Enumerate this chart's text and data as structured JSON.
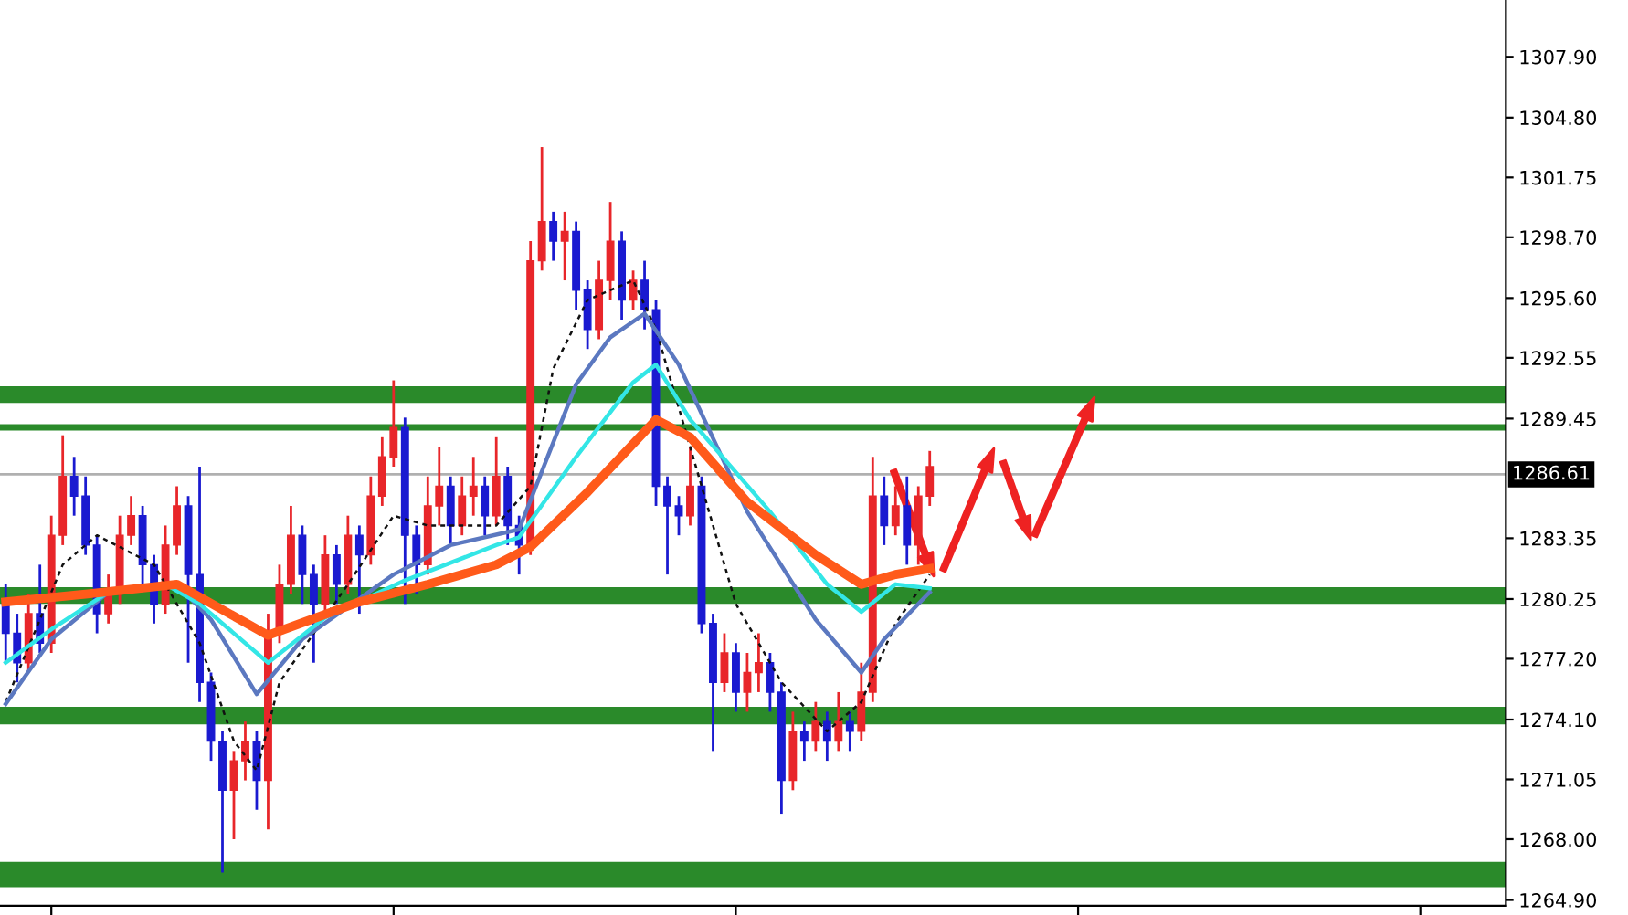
{
  "chart_data": {
    "type": "candlestick",
    "categories": [
      null,
      null,
      null,
      null,
      null,
      null,
      null,
      null,
      null,
      null,
      null,
      null,
      null,
      null,
      null,
      null,
      null,
      null,
      null,
      null,
      null,
      null,
      null,
      null,
      null,
      null,
      null,
      null,
      null,
      null,
      null,
      null,
      null,
      null,
      null,
      null,
      null,
      null,
      null,
      null,
      null,
      null,
      null,
      null,
      null,
      null,
      null,
      null,
      null,
      null,
      null,
      null,
      null,
      null,
      null,
      null,
      null,
      null,
      null,
      null,
      null,
      null,
      null,
      null,
      null,
      null,
      null,
      null,
      null,
      null,
      null,
      null,
      null,
      null,
      null,
      null,
      null,
      null,
      null,
      null,
      null,
      null,
      null,
      null,
      null,
      null,
      null,
      null,
      null,
      null,
      null,
      null,
      null,
      null,
      null,
      null,
      null,
      null,
      null,
      null,
      null,
      null,
      null,
      null,
      null,
      null,
      null,
      null,
      null,
      null,
      null,
      null,
      null,
      null,
      null,
      null,
      null,
      null,
      null,
      null,
      null,
      null,
      null,
      null,
      null,
      null,
      null,
      null,
      null,
      null,
      null,
      null
    ],
    "ohlc": [
      [
        1280.0,
        1281.0,
        1277.0,
        1278.5
      ],
      [
        1278.5,
        1279.5,
        1276.0,
        1277.0
      ],
      [
        1277.0,
        1280.5,
        1276.5,
        1279.5
      ],
      [
        1279.5,
        1282.0,
        1277.5,
        1278.0
      ],
      [
        1278.0,
        1284.5,
        1277.5,
        1283.5
      ],
      [
        1283.5,
        1288.6,
        1283.0,
        1286.5
      ],
      [
        1286.5,
        1287.5,
        1284.5,
        1285.5
      ],
      [
        1285.5,
        1286.5,
        1282.5,
        1283.0
      ],
      [
        1283.0,
        1283.5,
        1278.5,
        1279.5
      ],
      [
        1279.5,
        1281.5,
        1279.0,
        1280.5
      ],
      [
        1280.5,
        1284.5,
        1280.0,
        1283.5
      ],
      [
        1283.5,
        1285.5,
        1283.0,
        1284.5
      ],
      [
        1284.5,
        1285.0,
        1281.0,
        1282.0
      ],
      [
        1282.0,
        1282.5,
        1279.0,
        1280.0
      ],
      [
        1280.0,
        1284.0,
        1279.5,
        1283.0
      ],
      [
        1283.0,
        1286.0,
        1282.5,
        1285.0
      ],
      [
        1285.0,
        1285.5,
        1277.0,
        1281.5
      ],
      [
        1281.5,
        1287.0,
        1275.0,
        1276.0
      ],
      [
        1276.0,
        1276.5,
        1272.0,
        1273.0
      ],
      [
        1273.0,
        1273.5,
        1266.3,
        1270.5
      ],
      [
        1270.5,
        1272.5,
        1268.0,
        1272.0
      ],
      [
        1272.0,
        1274.0,
        1271.0,
        1273.0
      ],
      [
        1273.0,
        1273.5,
        1269.5,
        1271.0
      ],
      [
        1271.0,
        1279.5,
        1268.5,
        1278.5
      ],
      [
        1278.5,
        1282.0,
        1278.0,
        1281.0
      ],
      [
        1281.0,
        1285.0,
        1280.5,
        1283.5
      ],
      [
        1283.5,
        1284.0,
        1280.0,
        1281.5
      ],
      [
        1281.5,
        1282.0,
        1277.0,
        1280.0
      ],
      [
        1280.0,
        1283.5,
        1279.5,
        1282.5
      ],
      [
        1282.5,
        1283.0,
        1280.0,
        1281.0
      ],
      [
        1281.0,
        1284.5,
        1280.5,
        1283.5
      ],
      [
        1283.5,
        1284.0,
        1279.5,
        1282.5
      ],
      [
        1282.5,
        1286.5,
        1282.0,
        1285.5
      ],
      [
        1285.5,
        1288.5,
        1285.0,
        1287.5
      ],
      [
        1287.5,
        1291.4,
        1287.0,
        1289.0
      ],
      [
        1289.0,
        1289.5,
        1280.0,
        1283.5
      ],
      [
        1283.5,
        1284.0,
        1280.5,
        1282.0
      ],
      [
        1282.0,
        1286.5,
        1281.5,
        1285.0
      ],
      [
        1285.0,
        1288.0,
        1284.0,
        1286.0
      ],
      [
        1286.0,
        1286.5,
        1283.0,
        1284.0
      ],
      [
        1284.0,
        1286.5,
        1283.5,
        1285.5
      ],
      [
        1285.5,
        1287.5,
        1284.5,
        1286.0
      ],
      [
        1286.0,
        1286.5,
        1283.5,
        1284.5
      ],
      [
        1284.5,
        1288.5,
        1284.0,
        1286.5
      ],
      [
        1286.5,
        1287.0,
        1283.0,
        1284.0
      ],
      [
        1284.0,
        1284.5,
        1281.5,
        1283.0
      ],
      [
        1283.0,
        1298.5,
        1282.5,
        1297.5
      ],
      [
        1297.5,
        1303.3,
        1297.0,
        1299.5
      ],
      [
        1299.5,
        1300.0,
        1297.5,
        1298.5
      ],
      [
        1298.5,
        1300.0,
        1296.5,
        1299.0
      ],
      [
        1299.0,
        1299.5,
        1295.0,
        1296.0
      ],
      [
        1296.0,
        1296.5,
        1293.0,
        1294.0
      ],
      [
        1294.0,
        1297.5,
        1293.5,
        1296.5
      ],
      [
        1296.5,
        1300.5,
        1295.5,
        1298.5
      ],
      [
        1298.5,
        1299.0,
        1294.5,
        1295.5
      ],
      [
        1295.5,
        1297.0,
        1295.0,
        1296.5
      ],
      [
        1296.5,
        1297.5,
        1294.0,
        1295.0
      ],
      [
        1295.0,
        1295.5,
        1285.0,
        1286.0
      ],
      [
        1286.0,
        1286.5,
        1281.5,
        1285.0
      ],
      [
        1285.0,
        1285.5,
        1283.5,
        1284.5
      ],
      [
        1284.5,
        1288.0,
        1284.0,
        1286.0
      ],
      [
        1286.0,
        1286.5,
        1278.5,
        1279.0
      ],
      [
        1279.0,
        1279.5,
        1272.5,
        1276.0
      ],
      [
        1276.0,
        1278.5,
        1275.5,
        1277.5
      ],
      [
        1277.5,
        1278.0,
        1274.5,
        1275.5
      ],
      [
        1275.5,
        1277.5,
        1274.5,
        1276.5
      ],
      [
        1276.5,
        1278.5,
        1275.5,
        1277.0
      ],
      [
        1277.0,
        1277.5,
        1274.5,
        1275.5
      ],
      [
        1275.5,
        1276.0,
        1269.3,
        1271.0
      ],
      [
        1271.0,
        1274.5,
        1270.5,
        1273.5
      ],
      [
        1273.5,
        1274.0,
        1272.0,
        1273.0
      ],
      [
        1273.0,
        1275.0,
        1272.5,
        1274.0
      ],
      [
        1274.0,
        1274.5,
        1272.0,
        1273.0
      ],
      [
        1273.0,
        1275.5,
        1272.5,
        1274.0
      ],
      [
        1274.0,
        1274.5,
        1272.5,
        1273.5
      ],
      [
        1273.5,
        1277.0,
        1273.0,
        1275.5
      ],
      [
        1275.5,
        1287.5,
        1275.0,
        1285.5
      ],
      [
        1285.5,
        1286.5,
        1283.0,
        1284.0
      ],
      [
        1284.0,
        1286.0,
        1283.5,
        1285.0
      ],
      [
        1285.0,
        1286.5,
        1282.0,
        1283.0
      ],
      [
        1283.0,
        1286.0,
        1282.0,
        1285.5
      ],
      [
        1285.5,
        1287.8,
        1285.0,
        1287.0
      ],
      null,
      null,
      null,
      null,
      null,
      null,
      null,
      null,
      null,
      null,
      null,
      null,
      null,
      null,
      null,
      null,
      null,
      null,
      null,
      null,
      null,
      null,
      null,
      null,
      null,
      null,
      null,
      null,
      null,
      null,
      null,
      null,
      null,
      null,
      null,
      null,
      null,
      null,
      null,
      null,
      null,
      null,
      null,
      null,
      null,
      null,
      null,
      null,
      null,
      null
    ],
    "series": [
      {
        "type": "line",
        "line_style": "dashed",
        "color": "#111111",
        "values": [
          1275,
          null,
          null,
          null,
          null,
          1282,
          null,
          null,
          1283.5,
          null,
          null,
          null,
          null,
          1282,
          null,
          null,
          null,
          1278,
          null,
          null,
          1273,
          null,
          1271.5,
          null,
          1276,
          null,
          null,
          null,
          null,
          null,
          1281,
          null,
          null,
          null,
          1284.5,
          null,
          null,
          1284,
          null,
          null,
          null,
          null,
          null,
          1284,
          null,
          null,
          1286,
          null,
          1292,
          null,
          null,
          1295.5,
          null,
          null,
          null,
          1296.5,
          null,
          1294,
          null,
          null,
          null,
          1286,
          null,
          null,
          1280,
          null,
          null,
          null,
          1276,
          null,
          null,
          null,
          1273.5,
          null,
          null,
          1275,
          null,
          null,
          1279,
          null,
          null,
          1281.5,
          null,
          null,
          null,
          null,
          null,
          null,
          null,
          null,
          null,
          null,
          null,
          null,
          null,
          null,
          null,
          null,
          null,
          null,
          null,
          null,
          null,
          null,
          null,
          null,
          null,
          null,
          null,
          null,
          null,
          null,
          null,
          null,
          null,
          null,
          null,
          null,
          null,
          null,
          null,
          null,
          null,
          null,
          null,
          null,
          null,
          null,
          null,
          null,
          null,
          null
        ]
      },
      {
        "type": "line",
        "line_style": "solid",
        "color": "#5b78c0",
        "values": [
          1274.9,
          null,
          null,
          null,
          1278.2,
          null,
          null,
          null,
          null,
          1280.6,
          null,
          null,
          null,
          null,
          null,
          1281.0,
          null,
          null,
          1279.2,
          null,
          null,
          null,
          1275.4,
          null,
          null,
          null,
          1278.2,
          null,
          null,
          null,
          null,
          null,
          null,
          null,
          1281.5,
          null,
          null,
          null,
          null,
          1283.0,
          null,
          null,
          null,
          null,
          null,
          1283.8,
          null,
          null,
          null,
          null,
          1291.2,
          null,
          null,
          1293.6,
          null,
          null,
          1294.8,
          null,
          null,
          1292.2,
          null,
          null,
          null,
          null,
          null,
          1284.7,
          null,
          null,
          null,
          null,
          null,
          1279.2,
          null,
          null,
          null,
          1276.5,
          null,
          1278.2,
          null,
          null,
          null,
          1280.6,
          null,
          null,
          null,
          null,
          null,
          null,
          null,
          null,
          null,
          null,
          null,
          null,
          null,
          null,
          null,
          null,
          null,
          null,
          null,
          null,
          null,
          null,
          null,
          null,
          null,
          null,
          null,
          null,
          null,
          null,
          null,
          null,
          null,
          null,
          null,
          null,
          null,
          null,
          null,
          null,
          null,
          null,
          null,
          null,
          null,
          null,
          null,
          null,
          null,
          null
        ]
      },
      {
        "type": "line",
        "line_style": "solid",
        "color": "#33e6e6",
        "values": [
          1277.0,
          null,
          null,
          null,
          1278.7,
          null,
          null,
          null,
          null,
          1280.6,
          null,
          null,
          null,
          null,
          1281.0,
          null,
          null,
          1280.0,
          null,
          null,
          null,
          null,
          null,
          1277.0,
          null,
          null,
          null,
          null,
          1279.3,
          null,
          null,
          null,
          null,
          null,
          null,
          1281.2,
          null,
          null,
          null,
          null,
          null,
          null,
          null,
          1283.0,
          null,
          1283.4,
          null,
          null,
          null,
          null,
          1287.5,
          null,
          null,
          null,
          null,
          1291.3,
          null,
          1292.2,
          null,
          null,
          1289.4,
          null,
          null,
          null,
          null,
          null,
          null,
          1284.7,
          null,
          null,
          null,
          null,
          1281.0,
          null,
          null,
          1279.6,
          null,
          null,
          1281.0,
          null,
          null,
          1280.8,
          null,
          null,
          null,
          null,
          null,
          null,
          null,
          null,
          null,
          null,
          null,
          null,
          null,
          null,
          null,
          null,
          null,
          null,
          null,
          null,
          null,
          null,
          null,
          null,
          null,
          null,
          null,
          null,
          null,
          null,
          null,
          null,
          null,
          null,
          null,
          null,
          null,
          null,
          null,
          null,
          null,
          null,
          null,
          null,
          null,
          null,
          null,
          null,
          null,
          null
        ]
      },
      {
        "type": "line",
        "line_style": "solid",
        "color": "#ff5a1a",
        "values": [
          1280.1,
          null,
          null,
          null,
          null,
          null,
          null,
          1280.5,
          null,
          null,
          null,
          null,
          null,
          null,
          null,
          1281.0,
          null,
          null,
          null,
          null,
          null,
          null,
          null,
          1278.4,
          null,
          null,
          null,
          null,
          null,
          null,
          null,
          1280.1,
          null,
          null,
          null,
          null,
          null,
          1281.0,
          null,
          null,
          null,
          null,
          null,
          1282.0,
          null,
          null,
          1282.9,
          null,
          null,
          null,
          null,
          1285.7,
          null,
          null,
          null,
          null,
          null,
          1289.4,
          null,
          null,
          1288.5,
          null,
          null,
          null,
          null,
          1285.2,
          null,
          null,
          null,
          null,
          null,
          1282.5,
          null,
          null,
          null,
          1281.0,
          null,
          null,
          1281.5,
          null,
          null,
          1281.8,
          null,
          null,
          null,
          null,
          null,
          null,
          null,
          null,
          null,
          null,
          null,
          null,
          null,
          null,
          null,
          null,
          null,
          null,
          null,
          null,
          null,
          null,
          null,
          null,
          null,
          null,
          null,
          null,
          null,
          null,
          null,
          null,
          null,
          null,
          null,
          null,
          null,
          null,
          null,
          null,
          null,
          null,
          null,
          null,
          null,
          null,
          null,
          null,
          null,
          null
        ]
      }
    ],
    "bands": [
      {
        "axis": "y",
        "from": 1290.25,
        "to": 1291.1,
        "color": "#2a8a2a"
      },
      {
        "axis": "y",
        "from": 1280.0,
        "to": 1280.85,
        "color": "#2a8a2a"
      },
      {
        "axis": "y",
        "from": 1273.85,
        "to": 1274.75,
        "color": "#2a8a2a"
      },
      {
        "axis": "y",
        "from": 1265.55,
        "to": 1266.85,
        "color": "#2a8a2a"
      }
    ],
    "ref_lines": [
      {
        "axis": "y",
        "value": 1289.0,
        "color": "#2a8a2a",
        "line_style": "solid"
      },
      {
        "axis": "y",
        "value": 1286.61,
        "label": "1286.61",
        "color": "#b0b0b0",
        "line_style": "solid"
      }
    ],
    "ylim": [
      1264.6,
      1310.8
    ],
    "yticks": [
      {
        "value": 1264.9,
        "label": "1264.90"
      },
      {
        "value": 1268.0,
        "label": "1268.00"
      },
      {
        "value": 1271.05,
        "label": "1271.05"
      },
      {
        "value": 1274.1,
        "label": "1274.10"
      },
      {
        "value": 1277.2,
        "label": "1277.20"
      },
      {
        "value": 1280.25,
        "label": "1280.25"
      },
      {
        "value": 1283.35,
        "label": "1283.35"
      },
      {
        "value": 1289.45,
        "label": "1289.45"
      },
      {
        "value": 1292.55,
        "label": "1292.55"
      },
      {
        "value": 1295.6,
        "label": "1295.60"
      },
      {
        "value": 1298.7,
        "label": "1298.70"
      },
      {
        "value": 1301.75,
        "label": "1301.75"
      },
      {
        "value": 1304.8,
        "label": "1304.80"
      },
      {
        "value": 1307.9,
        "label": "1307.90"
      }
    ],
    "tick_labels": "y",
    "grid": false,
    "legend": false
  }
}
